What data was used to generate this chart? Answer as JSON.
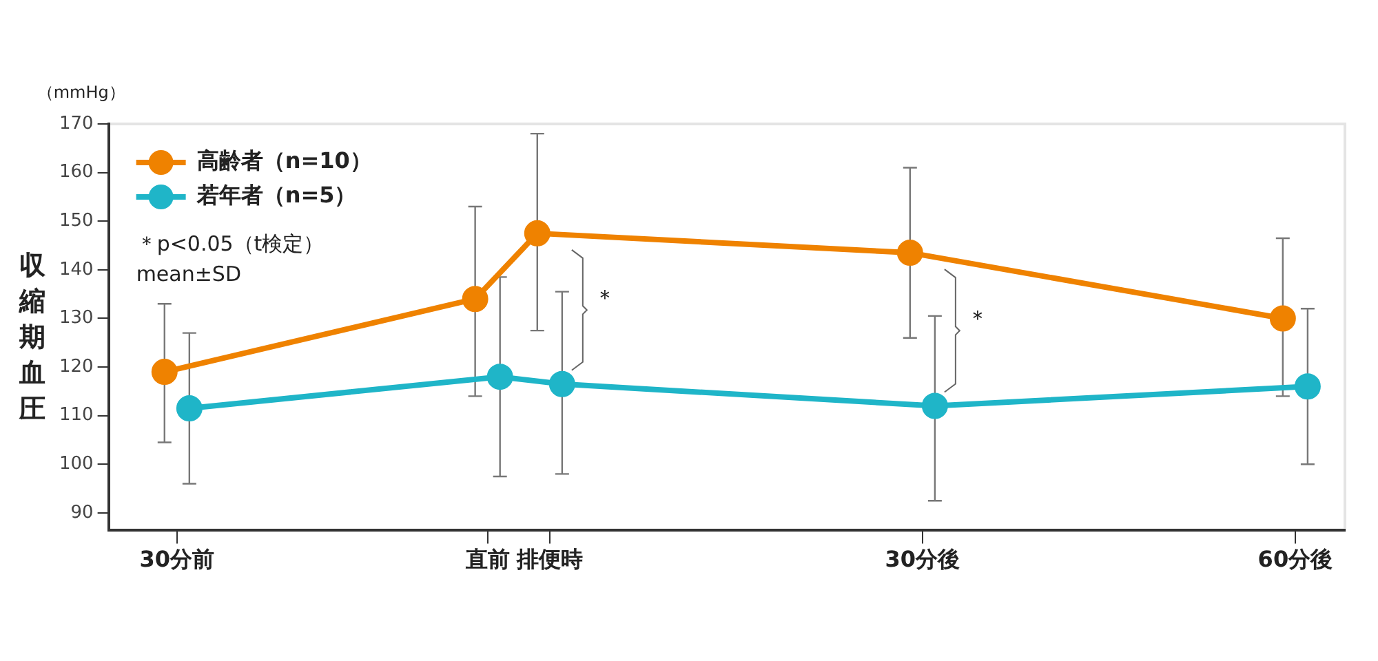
{
  "chart_data": {
    "type": "line",
    "ylabel": "収縮期血圧",
    "xlim": [
      -35.5,
      64
    ],
    "xticks": [
      {
        "value": -30,
        "label": "30分前"
      },
      {
        "value": -5,
        "label": "直前"
      },
      {
        "value": 0,
        "label": "排便時"
      },
      {
        "value": 30,
        "label": "30分後"
      },
      {
        "value": 60,
        "label": "60分後"
      }
    ],
    "ylim": [
      86.5,
      170
    ],
    "yticks": [
      90,
      100,
      110,
      120,
      130,
      140,
      150,
      160,
      170
    ],
    "series": [
      {
        "name": "高齢者（n=10）",
        "color": "#ef8200",
        "x": [
          -31,
          -6,
          -1,
          29,
          59
        ],
        "values": [
          119,
          134,
          147.5,
          143.5,
          130
        ],
        "errors": [
          [
            104.5,
            133
          ],
          [
            114,
            153
          ],
          [
            127.5,
            168
          ],
          [
            126,
            161
          ],
          [
            114,
            146.5
          ]
        ]
      },
      {
        "name": "若年者（n=5）",
        "color": "#1fb5c8",
        "x": [
          -29,
          -4,
          1,
          31,
          61
        ],
        "values": [
          111.5,
          118,
          116.5,
          112,
          116
        ],
        "errors": [
          [
            96,
            127
          ],
          [
            97.5,
            138.5
          ],
          [
            98,
            135.5
          ],
          [
            92.5,
            130.5
          ],
          [
            100,
            132
          ]
        ]
      }
    ],
    "annotations": [
      "（mmHg）",
      "＊p<0.05（t検定）",
      "mean±SD",
      "＊",
      "＊"
    ],
    "grid": false,
    "legend": "top left",
    "marker": "circle",
    "line_style": "solid"
  }
}
